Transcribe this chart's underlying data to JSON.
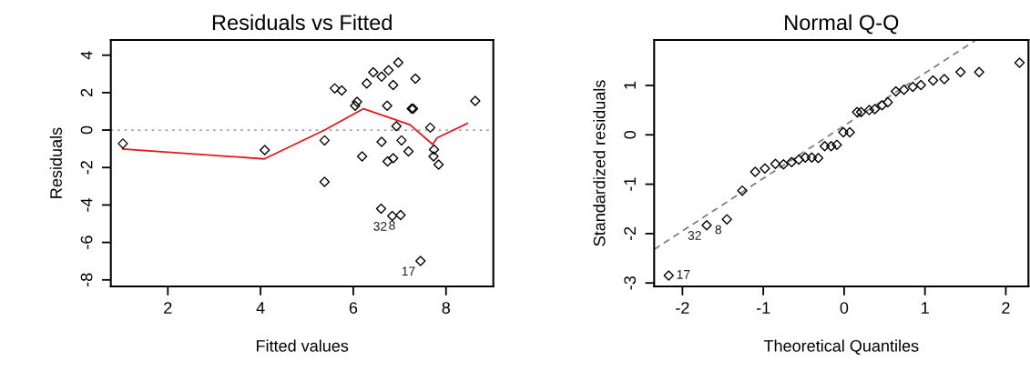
{
  "chart_data": [
    {
      "type": "scatter",
      "title": "Residuals vs Fitted",
      "xlabel": "Fitted values",
      "ylabel": "Residuals",
      "xlim": [
        0.77,
        9.02
      ],
      "ylim": [
        -8.35,
        4.81
      ],
      "xticks": [
        2,
        4,
        6,
        8
      ],
      "yticks": [
        -8,
        -6,
        -4,
        -2,
        0,
        2,
        4
      ],
      "grid": false,
      "legend": false,
      "marker": "diamond",
      "series": [
        {
          "color": "#000000",
          "x": [
            1.03,
            4.09,
            5.38,
            5.38,
            5.6,
            5.75,
            6.04,
            6.08,
            6.29,
            6.43,
            6.61,
            6.76,
            6.97,
            6.86,
            6.73,
            7.34,
            7.26,
            7.29,
            6.93,
            6.61,
            7.04,
            7.19,
            6.19,
            6.74,
            6.86,
            7.66,
            7.74,
            7.73,
            7.84,
            8.63,
            6.6,
            6.84,
            7.02,
            7.45
          ],
          "values": [
            -0.72,
            -1.07,
            -0.55,
            -2.76,
            2.23,
            2.11,
            1.3,
            1.51,
            2.49,
            3.09,
            2.85,
            3.19,
            3.61,
            2.41,
            1.3,
            2.75,
            1.14,
            1.14,
            0.21,
            -0.63,
            -0.55,
            -1.14,
            -1.41,
            -1.67,
            -1.5,
            0.13,
            -1.04,
            -1.41,
            -1.84,
            1.56,
            -4.2,
            -4.59,
            -4.54,
            -6.99
          ]
        },
        {
          "type": "line",
          "color": "#e31a1c",
          "marker": "none",
          "line_style": "solid",
          "x": [
            1.03,
            4.08,
            5.38,
            6.22,
            7.22,
            7.71,
            7.81,
            8.46
          ],
          "values": [
            -1.01,
            -1.54,
            0.0,
            1.14,
            0.29,
            -0.76,
            -0.41,
            0.36
          ]
        }
      ],
      "ref_lines": [
        {
          "axis": "y",
          "value": 0,
          "color": "#a0a0a0",
          "line_style": "dotted"
        }
      ],
      "annotations": [
        {
          "text": "32",
          "x": 6.84,
          "y": -4.59
        },
        {
          "text": "8",
          "x": 7.02,
          "y": -4.54
        },
        {
          "text": "17",
          "x": 7.45,
          "y": -6.99
        }
      ]
    },
    {
      "type": "scatter",
      "title": "Normal Q-Q",
      "xlabel": "Theoretical Quantiles",
      "ylabel": "Standardized residuals",
      "xlim": [
        -2.35,
        2.28
      ],
      "ylim": [
        -3.07,
        1.92
      ],
      "xticks": [
        -2,
        -1,
        0,
        1,
        2
      ],
      "yticks": [
        -3,
        -2,
        -1,
        0,
        1
      ],
      "grid": false,
      "legend": false,
      "marker": "diamond",
      "series": [
        {
          "color": "#000000",
          "x": [
            -2.17,
            -1.7,
            -1.45,
            -1.26,
            -1.1,
            -0.98,
            -0.85,
            -0.75,
            -0.65,
            -0.56,
            -0.48,
            -0.4,
            -0.32,
            -0.24,
            -0.16,
            -0.09,
            -0.01,
            0.07,
            0.16,
            0.21,
            0.31,
            0.38,
            0.47,
            0.54,
            0.64,
            0.74,
            0.85,
            0.95,
            1.1,
            1.24,
            1.44,
            1.67,
            2.17
          ],
          "values": [
            -2.85,
            -1.83,
            -1.71,
            -1.13,
            -0.75,
            -0.68,
            -0.59,
            -0.6,
            -0.55,
            -0.5,
            -0.46,
            -0.46,
            -0.47,
            -0.23,
            -0.23,
            -0.2,
            0.05,
            0.05,
            0.46,
            0.46,
            0.5,
            0.52,
            0.6,
            0.66,
            0.88,
            0.91,
            0.97,
            1.01,
            1.1,
            1.13,
            1.27,
            1.27,
            1.46
          ]
        },
        {
          "type": "line",
          "color": "#808080",
          "marker": "none",
          "line_style": "dashed",
          "x": [
            -2.35,
            1.63
          ],
          "values": [
            -2.32,
            1.92
          ]
        }
      ],
      "annotations": [
        {
          "text": "17",
          "x": -2.17,
          "y": -2.85
        },
        {
          "text": "32",
          "x": -1.7,
          "y": -1.83
        },
        {
          "text": "8",
          "x": -1.45,
          "y": -1.71
        }
      ]
    }
  ]
}
